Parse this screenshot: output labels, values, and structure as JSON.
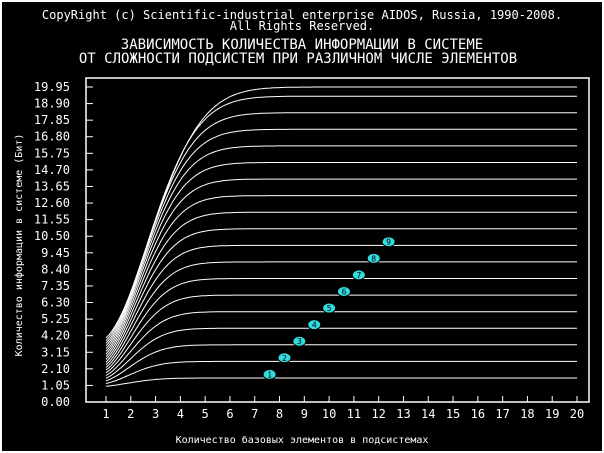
{
  "copyright": {
    "line1": "CopyRight (c) Scientific-industrial enterprise AIDOS, Russia, 1990-2008.",
    "line2": "All Rights Reserved."
  },
  "chart_data": {
    "type": "line",
    "title": "ЗАВИСИМОСТЬ КОЛИЧЕСТВА ИНФОРМАЦИИ В СИСТЕМЕ",
    "subtitle": "ОТ СЛОЖНОСТИ ПОДСИСТЕМ ПРИ РАЗЛИЧНОМ ЧИСЛЕ ЭЛЕМЕНТОВ",
    "xlabel": "Количество базовых элементов в подсистемах",
    "ylabel": "Количество информации в системе (Бит)",
    "x_ticks": [
      "1",
      "2",
      "3",
      "4",
      "5",
      "6",
      "7",
      "8",
      "9",
      "10",
      "11",
      "12",
      "13",
      "14",
      "15",
      "16",
      "17",
      "18",
      "19",
      "20"
    ],
    "y_ticks": [
      "0.00",
      "1.05",
      "2.10",
      "3.15",
      "4.20",
      "5.25",
      "6.30",
      "7.35",
      "8.40",
      "9.45",
      "10.50",
      "11.55",
      "12.60",
      "13.65",
      "14.70",
      "15.75",
      "16.80",
      "17.85",
      "18.90",
      "19.95"
    ],
    "xlim": [
      1,
      20
    ],
    "ylim": [
      0,
      19.95
    ],
    "series_count": 19,
    "series_saturation_values": [
      1.52,
      2.57,
      3.62,
      4.67,
      5.72,
      6.77,
      7.82,
      8.87,
      9.92,
      10.97,
      12.02,
      13.07,
      14.12,
      15.17,
      16.22,
      17.27,
      18.32,
      19.37,
      19.95
    ],
    "markers": [
      {
        "label": "1",
        "x": 7.6,
        "y": 1.75
      },
      {
        "label": "2",
        "x": 8.2,
        "y": 2.8
      },
      {
        "label": "3",
        "x": 8.8,
        "y": 3.85
      },
      {
        "label": "4",
        "x": 9.4,
        "y": 4.9
      },
      {
        "label": "5",
        "x": 10.0,
        "y": 5.95
      },
      {
        "label": "6",
        "x": 10.6,
        "y": 7.0
      },
      {
        "label": "7",
        "x": 11.2,
        "y": 8.05
      },
      {
        "label": "8",
        "x": 11.8,
        "y": 9.1
      },
      {
        "label": "9",
        "x": 12.4,
        "y": 10.15
      }
    ],
    "grid": false,
    "legend": "none"
  },
  "colors": {
    "background": "#000000",
    "frame": "#ffffff",
    "text": "#ffffff",
    "lines": "#ffffff",
    "marker_fill": "#33dddd",
    "marker_text": "#000000"
  }
}
